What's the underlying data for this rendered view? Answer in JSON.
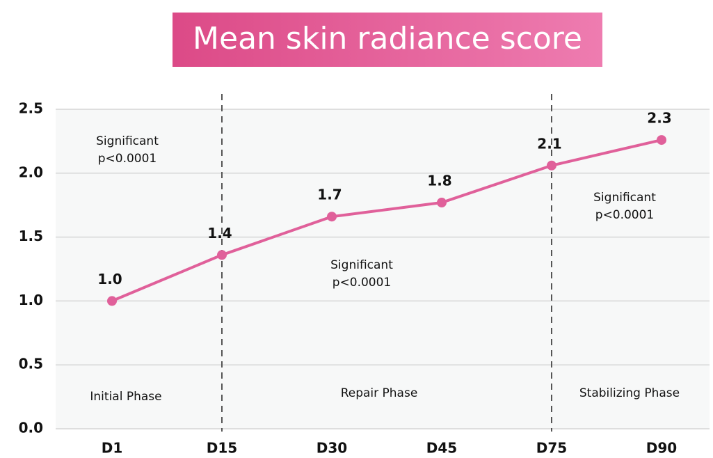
{
  "chart_data": {
    "type": "line",
    "title": "Mean skin radiance score",
    "categories": [
      "D1",
      "D15",
      "D30",
      "D45",
      "D75",
      "D90"
    ],
    "series": [
      {
        "name": "Mean skin radiance score",
        "color": "#e0609a",
        "values": [
          1.0,
          1.36,
          1.66,
          1.77,
          2.06,
          2.26
        ],
        "value_labels": [
          "1.0",
          "1.4",
          "1.7",
          "1.8",
          "2.1",
          "2.3"
        ]
      }
    ],
    "ylim": [
      0,
      2.5
    ],
    "yticks": [
      {
        "value": 0,
        "label": "0.0"
      },
      0.5,
      {
        "value": 1,
        "label": "1.0"
      },
      1.5,
      {
        "value": 2,
        "label": "2.0"
      },
      2.5
    ],
    "grid": true,
    "phases": [
      "Initial Phase",
      "Repair Phase",
      "Stabilizing Phase"
    ],
    "annotations": [
      [
        "Significant",
        "p<0.0001"
      ],
      [
        "Significant",
        "p<0.0001"
      ],
      [
        "Significant",
        "p<0.0001"
      ]
    ]
  }
}
